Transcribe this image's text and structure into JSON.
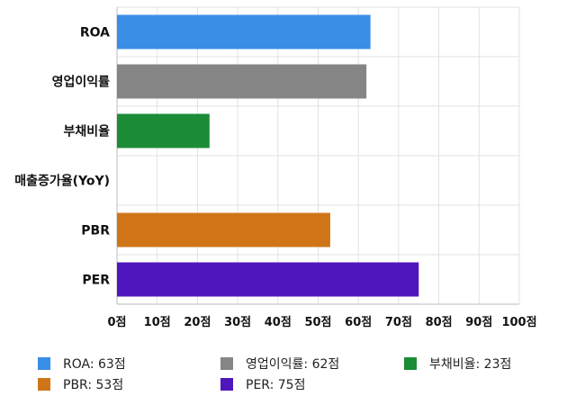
{
  "chart_data": {
    "type": "bar",
    "orientation": "horizontal",
    "categories": [
      "ROA",
      "영업이익률",
      "부채비율",
      "매출증가율(YoY)",
      "PBR",
      "PER"
    ],
    "values": [
      63,
      62,
      23,
      0,
      53,
      75
    ],
    "colors": [
      "#3a8ee6",
      "#858585",
      "#1c8c37",
      "#3a8ee6",
      "#cf7518",
      "#5016be"
    ],
    "xlim": [
      0,
      100
    ],
    "xticks": [
      0,
      10,
      20,
      30,
      40,
      50,
      60,
      70,
      80,
      90,
      100
    ],
    "tick_suffix": "점",
    "grid": true,
    "legend_position": "bottom"
  },
  "legend": [
    {
      "text": "ROA: 63점",
      "color": "#3a8ee6"
    },
    {
      "text": "영업이익률: 62점",
      "color": "#858585"
    },
    {
      "text": "부채비율: 23점",
      "color": "#1c8c37"
    },
    {
      "text": "PBR: 53점",
      "color": "#cf7518"
    },
    {
      "text": "PER: 75점",
      "color": "#5016be"
    }
  ]
}
